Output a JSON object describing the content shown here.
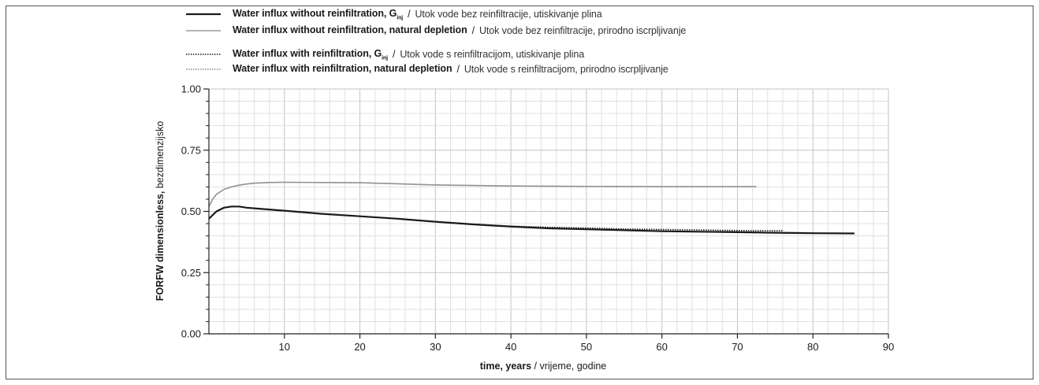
{
  "legend": [
    {
      "bold": "Water influx without reinfiltration, G",
      "sub": "inj",
      "rest": "Utok vode bez reinfiltracije, utiskivanje plina",
      "color": "#1a1a1a",
      "dash": "solid",
      "width": 2.2
    },
    {
      "bold": "Water influx without reinfiltration, natural depletion",
      "sub": "",
      "rest": "Utok vode bez reinfiltracije, prirodno iscrpljivanje",
      "color": "#9a9a9a",
      "dash": "solid",
      "width": 1.6
    },
    {
      "bold": "Water influx with reinfiltration, G",
      "sub": "inj",
      "rest": "Utok vode s reinfiltracijom, utiskivanje plina",
      "color": "#1a1a1a",
      "dash": "dotted",
      "width": 1.6
    },
    {
      "bold": "Water influx with reinfiltration, natural depletion",
      "sub": "",
      "rest": "Utok vode s reinfiltracijom, prirodno iscrpljivanje",
      "color": "#8a8a8a",
      "dash": "dotted",
      "width": 1.4
    }
  ],
  "chart_data": {
    "type": "line",
    "xlabel_bold": "time, years",
    "xlabel_rest": "vrijeme, godine",
    "ylabel_bold": "FORFW dimensionless,",
    "ylabel_rest": "bezdimenzijsko",
    "xlim": [
      0,
      90
    ],
    "ylim": [
      0,
      1
    ],
    "xticks": [
      10,
      20,
      30,
      40,
      50,
      60,
      70,
      80,
      90
    ],
    "yticks": [
      0.0,
      0.25,
      0.5,
      0.75,
      1.0
    ],
    "xtick_labels": [
      "10",
      "20",
      "30",
      "40",
      "50",
      "60",
      "70",
      "80",
      "90"
    ],
    "ytick_labels": [
      "0.00",
      "0.25",
      "0.50",
      "0.75",
      "1.00"
    ],
    "grid": true,
    "legend_position": "top",
    "series": [
      {
        "name": "Water influx without reinfiltration, natural depletion",
        "color": "#9a9a9a",
        "dash": "solid",
        "width": 1.6,
        "x": [
          0,
          0.5,
          1,
          2,
          3,
          4,
          5,
          6,
          8,
          10,
          15,
          20,
          25,
          30,
          40,
          50,
          60,
          72.5
        ],
        "y": [
          0.52,
          0.55,
          0.57,
          0.59,
          0.6,
          0.607,
          0.612,
          0.615,
          0.618,
          0.619,
          0.618,
          0.617,
          0.613,
          0.608,
          0.604,
          0.602,
          0.601,
          0.601
        ]
      },
      {
        "name": "Water influx with reinfiltration, natural depletion",
        "color": "#8a8a8a",
        "dash": "dotted",
        "width": 1.4,
        "x": [
          0,
          0.5,
          1,
          2,
          3,
          4,
          5,
          6,
          8,
          10,
          15,
          20,
          25,
          30,
          40,
          50,
          60,
          72.5
        ],
        "y": [
          0.52,
          0.55,
          0.57,
          0.59,
          0.6,
          0.607,
          0.612,
          0.615,
          0.618,
          0.619,
          0.618,
          0.617,
          0.613,
          0.608,
          0.604,
          0.602,
          0.601,
          0.601
        ]
      },
      {
        "name": "Water influx with reinfiltration, Ginj",
        "color": "#1a1a1a",
        "dash": "dotted",
        "width": 1.6,
        "x": [
          0,
          1,
          2,
          3,
          4,
          5,
          7,
          10,
          15,
          20,
          25,
          30,
          35,
          40,
          45,
          50,
          55,
          60,
          65,
          70,
          76
        ],
        "y": [
          0.47,
          0.5,
          0.515,
          0.52,
          0.52,
          0.515,
          0.51,
          0.503,
          0.49,
          0.48,
          0.47,
          0.458,
          0.448,
          0.44,
          0.435,
          0.432,
          0.428,
          0.426,
          0.424,
          0.422,
          0.421
        ]
      },
      {
        "name": "Water influx without reinfiltration, Ginj",
        "color": "#1a1a1a",
        "dash": "solid",
        "width": 2.2,
        "x": [
          0,
          1,
          2,
          3,
          4,
          5,
          7,
          10,
          15,
          20,
          25,
          30,
          35,
          40,
          45,
          50,
          55,
          60,
          65,
          70,
          75,
          80,
          85.5
        ],
        "y": [
          0.47,
          0.5,
          0.515,
          0.52,
          0.52,
          0.515,
          0.51,
          0.503,
          0.49,
          0.48,
          0.47,
          0.458,
          0.447,
          0.438,
          0.431,
          0.427,
          0.423,
          0.419,
          0.417,
          0.415,
          0.413,
          0.411,
          0.41
        ]
      }
    ]
  }
}
